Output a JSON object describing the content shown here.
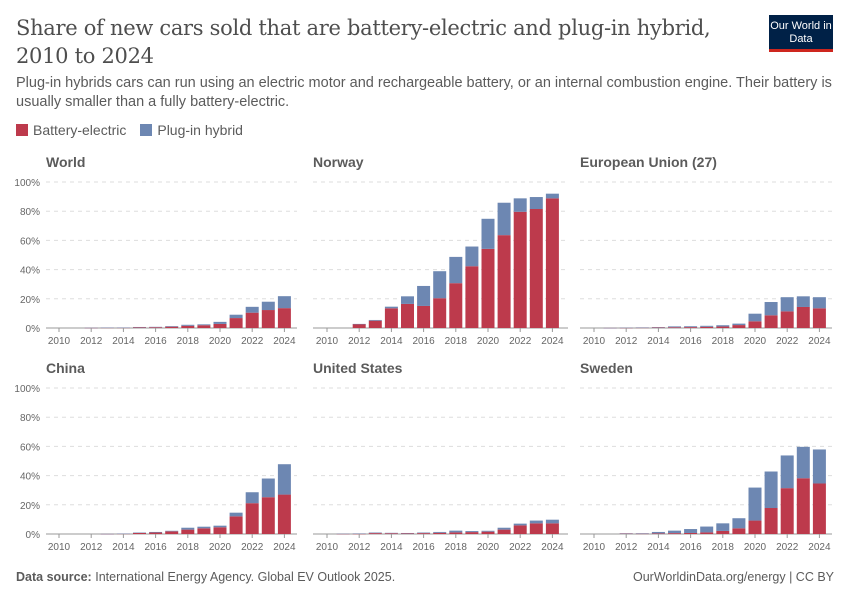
{
  "header": {
    "title": "Share of new cars sold that are battery-electric and plug-in hybrid, 2010 to 2024",
    "subtitle": "Plug-in hybrids cars can run using an electric motor and rechargeable battery, or an internal combustion engine. Their battery is usually smaller than a fully battery-electric.",
    "logo": "Our World in Data"
  },
  "footer": {
    "source_label": "Data source:",
    "source_text": "International Energy Agency. Global EV Outlook 2025.",
    "right": "OurWorldinData.org/energy | CC BY"
  },
  "colors": {
    "battery_electric": "#bd3a4c",
    "plug_in_hybrid": "#6d87b2"
  },
  "chart_data": {
    "type": "bar",
    "stacked": true,
    "legend": [
      "Battery-electric",
      "Plug-in hybrid"
    ],
    "legend_position": "top-left",
    "grid": true,
    "ylim": [
      0,
      100
    ],
    "y_ticks": [
      "0%",
      "20%",
      "40%",
      "60%",
      "80%",
      "100%"
    ],
    "x_ticks": [
      "2010",
      "2012",
      "2014",
      "2016",
      "2018",
      "2020",
      "2022",
      "2024"
    ],
    "years": [
      2010,
      2011,
      2012,
      2013,
      2014,
      2015,
      2016,
      2017,
      2018,
      2019,
      2020,
      2021,
      2022,
      2023,
      2024
    ],
    "panels": [
      {
        "title": "World",
        "series": [
          {
            "name": "Battery-electric",
            "values": [
              0,
              0,
              0.1,
              0.2,
              0.2,
              0.4,
              0.5,
              0.9,
              1.5,
              1.9,
              2.8,
              6.8,
              10.5,
              12.3,
              13.6
            ]
          },
          {
            "name": "Plug-in hybrid",
            "values": [
              0,
              0,
              0.05,
              0.1,
              0.15,
              0.3,
              0.3,
              0.4,
              0.7,
              0.6,
              1.4,
              2.3,
              4.0,
              5.7,
              8.2
            ]
          }
        ]
      },
      {
        "title": "Norway",
        "series": [
          {
            "name": "Battery-electric",
            "values": [
              0,
              0,
              2.7,
              5.0,
              13.5,
              16.5,
              15.1,
              20.4,
              30.7,
              42.3,
              54.2,
              63.6,
              79.6,
              81.5,
              88.8
            ]
          },
          {
            "name": "Plug-in hybrid",
            "values": [
              0,
              0,
              0.1,
              0.5,
              1.1,
              5.2,
              13.7,
              18.5,
              18.0,
              13.5,
              20.6,
              22.2,
              9.2,
              8.2,
              3.2
            ]
          }
        ]
      },
      {
        "title": "European Union (27)",
        "series": [
          {
            "name": "Battery-electric",
            "values": [
              0,
              0.05,
              0.1,
              0.2,
              0.3,
              0.5,
              0.6,
              0.8,
              1.0,
              2.0,
              4.6,
              8.7,
              11.4,
              14.4,
              13.5
            ]
          },
          {
            "name": "Plug-in hybrid",
            "values": [
              0,
              0.02,
              0.1,
              0.2,
              0.3,
              0.6,
              0.6,
              0.7,
              0.9,
              1.0,
              5.2,
              9.1,
              9.7,
              7.3,
              7.6
            ]
          }
        ]
      },
      {
        "title": "China",
        "series": [
          {
            "name": "Battery-electric",
            "values": [
              0,
              0,
              0,
              0.05,
              0.2,
              0.7,
              1.0,
              1.8,
              3.0,
              3.9,
              4.6,
              12.1,
              21.1,
              25.2,
              27.0
            ]
          },
          {
            "name": "Plug-in hybrid",
            "values": [
              0,
              0,
              0,
              0.05,
              0.1,
              0.3,
              0.4,
              0.4,
              1.3,
              1.1,
              1.1,
              2.5,
              7.5,
              12.8,
              20.8
            ]
          }
        ]
      },
      {
        "title": "United States",
        "series": [
          {
            "name": "Battery-electric",
            "values": [
              0,
              0.1,
              0.1,
              0.6,
              0.5,
              0.4,
              0.6,
              0.8,
              1.1,
              1.3,
              1.6,
              3.0,
              5.9,
              7.3,
              7.3
            ]
          },
          {
            "name": "Plug-in hybrid",
            "values": [
              0,
              0.1,
              0.3,
              0.4,
              0.3,
              0.3,
              0.4,
              0.6,
              1.2,
              0.7,
              0.6,
              1.3,
              1.2,
              1.9,
              2.5
            ]
          }
        ]
      },
      {
        "title": "Sweden",
        "series": [
          {
            "name": "Battery-electric",
            "values": [
              0,
              0,
              0.3,
              0.2,
              0.4,
              0.6,
              0.7,
              1.1,
              2.1,
              3.9,
              9.2,
              17.8,
              31.4,
              38.2,
              34.6
            ]
          },
          {
            "name": "Plug-in hybrid",
            "values": [
              0,
              0,
              0.2,
              0.3,
              1.0,
              1.7,
              2.7,
              4.0,
              5.2,
              6.9,
              22.6,
              25.0,
              22.4,
              21.5,
              23.3
            ]
          }
        ]
      }
    ]
  }
}
